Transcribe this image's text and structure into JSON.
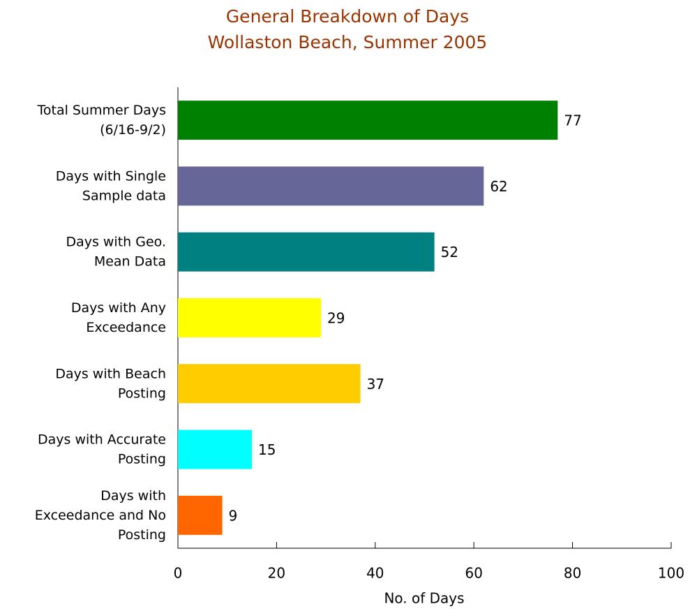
{
  "chart_data": {
    "type": "bar",
    "orientation": "horizontal",
    "title": "General Breakdown of Days",
    "subtitle": "Wollaston Beach, Summer 2005",
    "x_label": "No. of Days",
    "categories": [
      "Total Summer Days\n(6/16-9/2)",
      "Days with Single\nSample data",
      "Days with Geo.\nMean Data",
      "Days with Any\nExceedance",
      "Days with Beach\nPosting",
      "Days with Accurate\nPosting",
      "Days with\nExceedance and No\nPosting"
    ],
    "values": [
      77,
      62,
      52,
      29,
      37,
      15,
      9
    ],
    "colors": [
      "#008000",
      "#666699",
      "#008080",
      "#ffff00",
      "#ffcc00",
      "#00ffff",
      "#ff6600"
    ],
    "xlim": [
      0,
      100
    ],
    "xticks": [
      0,
      20,
      40,
      60,
      80,
      100
    ],
    "grid": false
  }
}
